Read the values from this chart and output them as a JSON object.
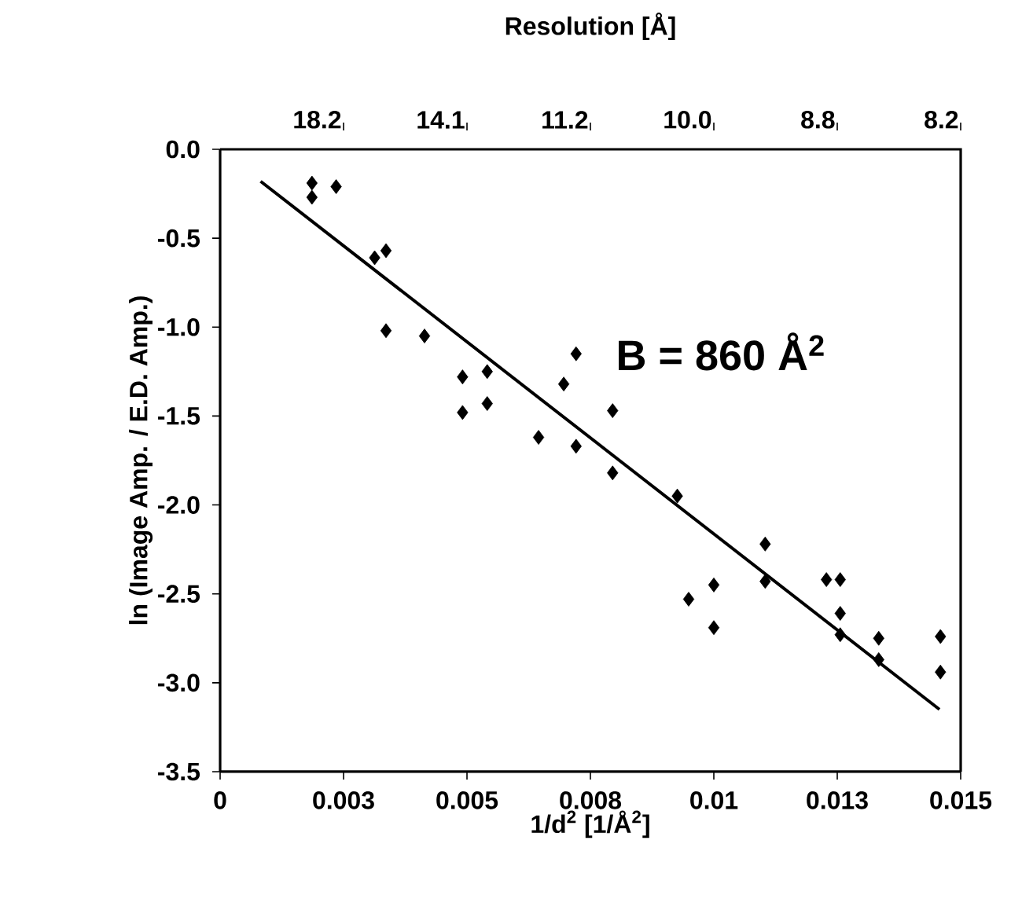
{
  "chart_data": {
    "type": "scatter",
    "xlabel": "1/d$^{2}$ [1/Å$^{2}$]",
    "ylabel": "ln (Image Amp. / E.D. Amp.)",
    "x2label": "Resolution [Å]",
    "annotations": [
      "B = 860 Å$^{2}$",
      "18.2",
      "14.1",
      "11.2",
      "10.0",
      "8.8",
      "8.2"
    ],
    "xlim": [
      0,
      0.015
    ],
    "xticks": [
      0,
      {
        "value": 0.0025,
        "label": "0.003"
      },
      {
        "value": 0.005,
        "label": "0.005"
      },
      {
        "value": 0.0075,
        "label": "0.008"
      },
      {
        "value": 0.01,
        "label": "0.01"
      },
      {
        "value": 0.0125,
        "label": "0.013"
      },
      {
        "value": 0.015,
        "label": "0.015"
      }
    ],
    "ylim": [
      -3.5,
      0
    ],
    "yticks": [
      {
        "value": 0,
        "label": "0.0"
      },
      -0.5,
      {
        "value": -1,
        "label": "-1.0"
      },
      -1.5,
      {
        "value": -2,
        "label": "-2.0"
      },
      -2.5,
      {
        "value": -3,
        "label": "-3.0"
      },
      -3.5
    ],
    "marker": "diamond",
    "grid": false,
    "series": [
      {
        "color": "#000000",
        "x": [
          0.00186,
          0.00186,
          0.00235,
          0.00313,
          0.00336,
          0.00336,
          0.00414,
          0.00491,
          0.00491,
          0.00541,
          0.00541,
          0.00645,
          0.00696,
          0.00721,
          0.00721,
          0.00795,
          0.00795,
          0.00926,
          0.00949,
          0.01,
          0.01,
          0.01104,
          0.01104,
          0.01228,
          0.01256,
          0.01256,
          0.01256,
          0.01334,
          0.01334,
          0.01459,
          0.01459
        ],
        "values": [
          -0.19,
          -0.27,
          -0.21,
          -0.61,
          -0.57,
          -1.02,
          -1.05,
          -1.28,
          -1.48,
          -1.25,
          -1.43,
          -1.62,
          -1.32,
          -1.15,
          -1.67,
          -1.47,
          -1.82,
          -1.95,
          -2.53,
          -2.45,
          -2.69,
          -2.22,
          -2.43,
          -2.42,
          -2.42,
          -2.61,
          -2.73,
          -2.75,
          -2.87,
          -2.74,
          -2.94
        ]
      },
      {
        "type": "line",
        "color": "#000000",
        "marker": "none",
        "line_style": "solid",
        "x": [
          0.00082,
          0.01457
        ],
        "values": [
          -0.18,
          -3.15
        ]
      }
    ]
  }
}
